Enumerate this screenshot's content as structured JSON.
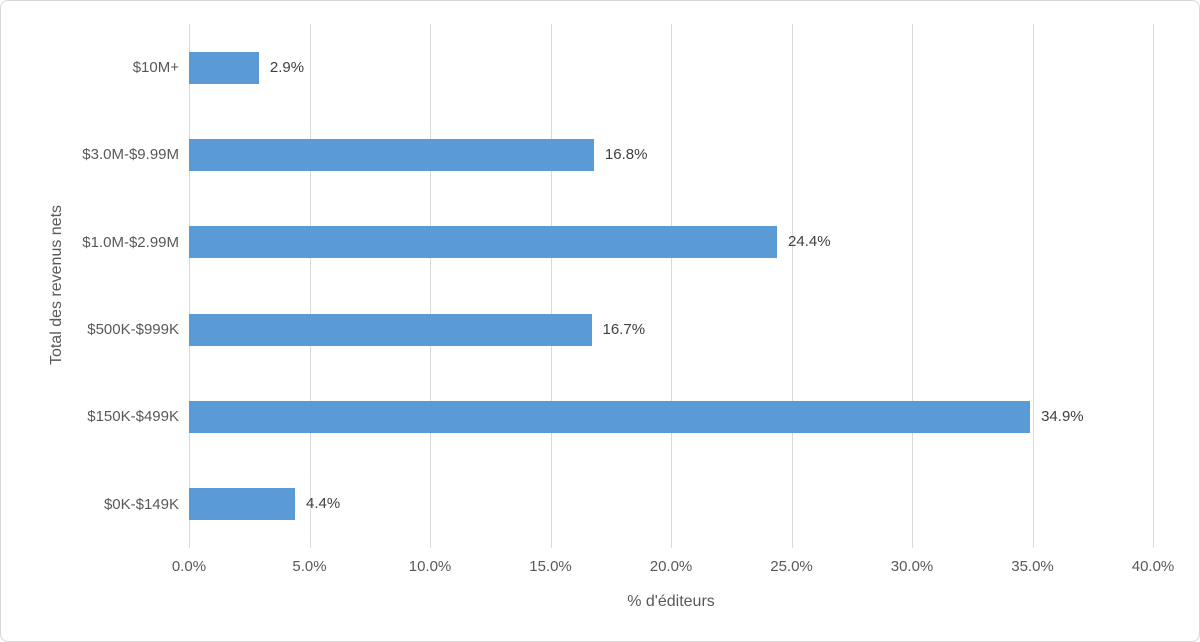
{
  "chart_data": {
    "type": "bar",
    "orientation": "horizontal",
    "categories": [
      "$10M+",
      "$3.0M-$9.99M",
      "$1.0M-$2.99M",
      "$500K-$999K",
      "$150K-$499K",
      "$0K-$149K"
    ],
    "values": [
      2.9,
      16.8,
      24.4,
      16.7,
      34.9,
      4.4
    ],
    "data_labels": [
      "2.9%",
      "16.8%",
      "24.4%",
      "16.7%",
      "34.9%",
      "4.4%"
    ],
    "title": "",
    "xlabel": "% d'éditeurs",
    "ylabel": "Total des revenus nets",
    "xlim": [
      0,
      40
    ],
    "x_ticks": [
      0,
      5,
      10,
      15,
      20,
      25,
      30,
      35,
      40
    ],
    "x_tick_labels": [
      "0.0%",
      "5.0%",
      "10.0%",
      "15.0%",
      "20.0%",
      "25.0%",
      "30.0%",
      "35.0%",
      "40.0%"
    ],
    "grid": "vertical-only",
    "legend": "none",
    "colors": {
      "bar": "#5b9bd5",
      "gridline": "#d9d9d9",
      "axis_text": "#595959",
      "data_label_text": "#404040",
      "background": "#ffffff",
      "border": "#d7d7d7"
    }
  }
}
